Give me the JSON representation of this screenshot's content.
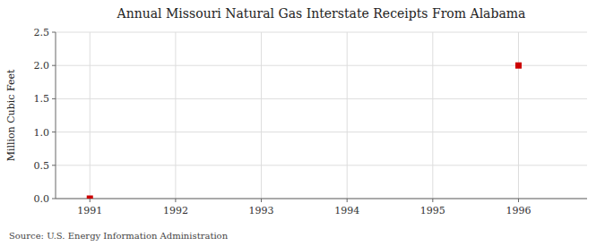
{
  "chart_data": {
    "type": "scatter",
    "title": "Annual Missouri Natural Gas Interstate Receipts From Alabama",
    "ylabel": "Million Cubic Feet",
    "source": "Source: U.S. Energy Information Administration",
    "x": [
      1991,
      1996
    ],
    "values": [
      0.0,
      2.0
    ],
    "color": "#cc0000",
    "marker": "square",
    "xlim": [
      1990.6,
      1996.8
    ],
    "ylim": [
      0.0,
      2.5
    ],
    "xticks": [
      1991,
      1992,
      1993,
      1994,
      1995,
      1996
    ],
    "yticks": [
      {
        "value": 0.0,
        "label": "0.0"
      },
      0.5,
      {
        "value": 1.0,
        "label": "1.0"
      },
      1.5,
      {
        "value": 2.0,
        "label": "2.0"
      },
      2.5
    ],
    "grid": true
  }
}
